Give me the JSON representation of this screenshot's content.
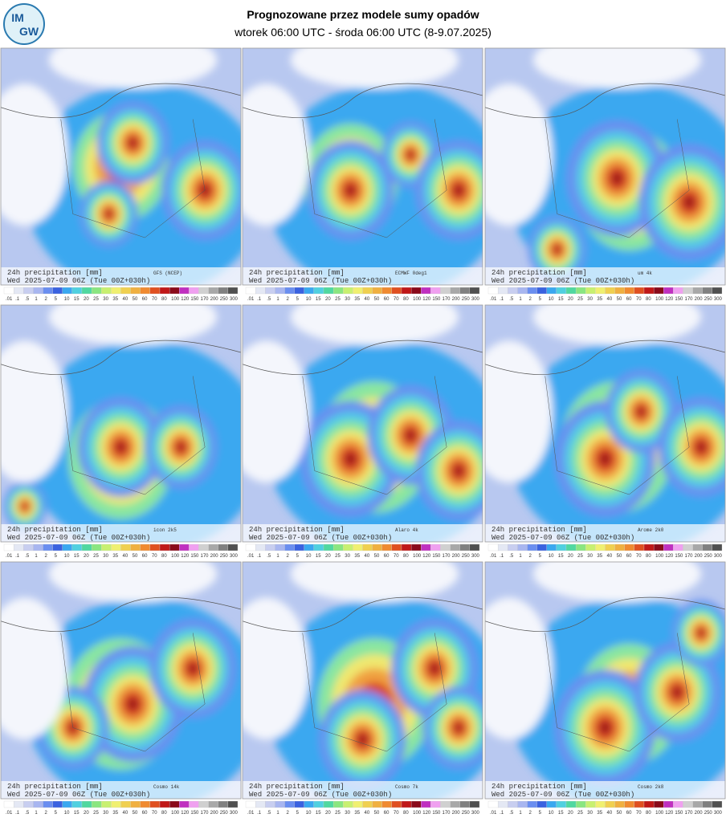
{
  "header": {
    "logo_text": [
      "IM",
      "GW"
    ],
    "title": "Prognozowane przez modele sumy opadów",
    "subtitle": "wtorek 06:00 UTC - środa 06:00 UTC (8-9.07.2025)"
  },
  "panels": [
    {
      "caption": "24h precipitation   [mm]",
      "model": "GFS (NCEP)",
      "valid": "Wed 2025-07-09 06Z (Tue 00Z+030h)"
    },
    {
      "caption": "24h precipitation   [mm]",
      "model": "ECMWF 0deg1",
      "valid": "Wed 2025-07-09 06Z (Tue 00Z+030h)"
    },
    {
      "caption": "24h precipitation   [mm]",
      "model": "um 4k",
      "valid": "Wed 2025-07-09 06Z (Tue 00Z+030h)"
    },
    {
      "caption": "24h precipitation   [mm]",
      "model": "icon 2k5",
      "valid": "Wed 2025-07-09 06Z (Tue 00Z+030h)"
    },
    {
      "caption": "24h precipitation   [mm]",
      "model": "Alaro 4k",
      "valid": "Wed 2025-07-09 06Z (Tue 00Z+030h)"
    },
    {
      "caption": "24h precipitation   [mm]",
      "model": "Arome 2k0",
      "valid": "Wed 2025-07-09 06Z (Tue 00Z+030h)"
    },
    {
      "caption": "24h precipitation   [mm]",
      "model": "Cosmo 14k",
      "valid": "Wed 2025-07-09 06Z (Tue 00Z+030h)"
    },
    {
      "caption": "24h precipitation   [mm]",
      "model": "Cosmo 7k",
      "valid": "Wed 2025-07-09 06Z (Tue 00Z+030h)"
    },
    {
      "caption": "24h precipitation   [mm]",
      "model": "Cosmo 2k8",
      "valid": "Wed 2025-07-09 06Z (Tue 00Z+030h)"
    }
  ],
  "colorbar": {
    "labels": [
      ".01",
      ".1",
      ".5",
      "1",
      "2",
      "5",
      "10",
      "15",
      "20",
      "25",
      "30",
      "35",
      "40",
      "50",
      "60",
      "70",
      "80",
      "100",
      "120",
      "150",
      "170",
      "200",
      "250",
      "300"
    ],
    "colors": [
      "#ffffff",
      "#e4e8f4",
      "#c8cef0",
      "#a8b6f0",
      "#6a8ef0",
      "#3a62e0",
      "#3aa8f0",
      "#50d0e0",
      "#50d8a0",
      "#8ae680",
      "#c8f070",
      "#f0f070",
      "#f0d050",
      "#f0b040",
      "#f08a30",
      "#e05020",
      "#c01818",
      "#8a0a1a",
      "#c030c0",
      "#f0a0f0",
      "#d0d0d0",
      "#a8a8a8",
      "#808080",
      "#505050"
    ]
  }
}
